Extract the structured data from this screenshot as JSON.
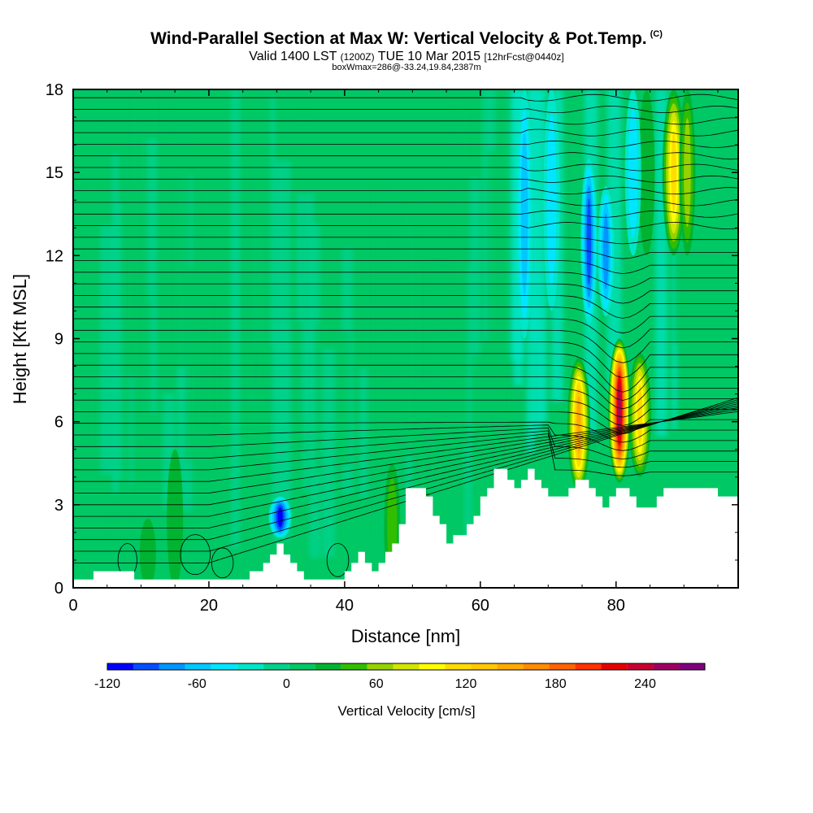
{
  "chart_data": {
    "type": "heatmap",
    "title": "Wind-Parallel Section at Max W: Vertical Velocity & Pot.Temp.",
    "title_mark": "(C)",
    "subtitle_main": "Valid 1400 LST",
    "subtitle_z": "(1200Z)",
    "subtitle_date": "TUE 10 Mar 2015",
    "subtitle_fcst": "[12hrFcst@0440z]",
    "subtitle2": "boxWmax=286@-33.24,19.84,2387m",
    "xlabel": "Distance [nm]",
    "ylabel": "Height [Kft MSL]",
    "xlim": [
      0,
      98
    ],
    "ylim": [
      0,
      18
    ],
    "xticks": [
      "0",
      "20",
      "40",
      "60",
      "80"
    ],
    "xtick_values": [
      0,
      20,
      40,
      60,
      80
    ],
    "yticks": [
      "0",
      "3",
      "6",
      "9",
      "12",
      "15",
      "18"
    ],
    "ytick_values": [
      0,
      3,
      6,
      9,
      12,
      15,
      18
    ],
    "colorbar_label": "Vertical Velocity [cm/s]",
    "colorbar_ticks": [
      "-120",
      "-60",
      "0",
      "60",
      "120",
      "180",
      "240"
    ],
    "colorbar_tick_values": [
      -120,
      -60,
      0,
      60,
      120,
      180,
      240
    ],
    "colorbar_range": [
      -120,
      280
    ],
    "colorbar_colors": [
      "#0000ff",
      "#0050ff",
      "#0096ff",
      "#00c8ff",
      "#00e6ff",
      "#00e6c8",
      "#00d28c",
      "#00c864",
      "#00b432",
      "#32be00",
      "#96d200",
      "#d2e600",
      "#ffff00",
      "#ffdc00",
      "#ffc800",
      "#ffaa00",
      "#ff8c00",
      "#ff6400",
      "#ff3200",
      "#e60000",
      "#c80032",
      "#a00064",
      "#800080"
    ],
    "wind_features": [
      {
        "x": 30.5,
        "y0": 1.8,
        "y1": 3.3,
        "w": -110
      },
      {
        "x": 74.5,
        "y0": 3.5,
        "y1": 8.3,
        "w": 140
      },
      {
        "x": 80.5,
        "y0": 3.8,
        "y1": 9.0,
        "w": 240
      },
      {
        "x": 83.5,
        "y0": 4.0,
        "y1": 8.5,
        "w": 110
      },
      {
        "x": 76,
        "y0": 9.5,
        "y1": 15.5,
        "w": -90
      },
      {
        "x": 78.5,
        "y0": 9.8,
        "y1": 14.5,
        "w": -70
      },
      {
        "x": 88.5,
        "y0": 12.0,
        "y1": 18.0,
        "w": 110
      },
      {
        "x": 90.5,
        "y0": 12.0,
        "y1": 18.0,
        "w": 60
      },
      {
        "x": 84.5,
        "y0": 12.0,
        "y1": 18.0,
        "w": 20
      },
      {
        "x": 66.5,
        "y0": 9.0,
        "y1": 18.0,
        "w": -45
      },
      {
        "x": 70.5,
        "y0": 10.0,
        "y1": 18.0,
        "w": -40
      },
      {
        "x": 82.5,
        "y0": 12.0,
        "y1": 18.0,
        "w": -40
      },
      {
        "x": 47,
        "y0": 0.0,
        "y1": 4.5,
        "w": 35
      },
      {
        "x": 52,
        "y0": 0.0,
        "y1": 3.5,
        "w": 30
      },
      {
        "x": 11,
        "y0": 0.0,
        "y1": 2.5,
        "w": 25
      },
      {
        "x": 15,
        "y0": 0.0,
        "y1": 5.0,
        "w": 20
      }
    ],
    "terrain_nm_kft": [
      [
        0,
        0.3
      ],
      [
        3,
        0.3
      ],
      [
        3,
        0.6
      ],
      [
        9,
        0.6
      ],
      [
        9,
        0.3
      ],
      [
        26,
        0.3
      ],
      [
        26,
        0.6
      ],
      [
        28,
        0.6
      ],
      [
        28,
        0.9
      ],
      [
        29,
        0.9
      ],
      [
        29,
        1.2
      ],
      [
        30,
        1.2
      ],
      [
        30,
        1.6
      ],
      [
        31,
        1.6
      ],
      [
        31,
        1.2
      ],
      [
        32,
        1.2
      ],
      [
        32,
        0.9
      ],
      [
        33,
        0.9
      ],
      [
        33,
        0.6
      ],
      [
        34,
        0.6
      ],
      [
        34,
        0.3
      ],
      [
        40,
        0.3
      ],
      [
        40,
        0.6
      ],
      [
        41,
        0.6
      ],
      [
        41,
        0.9
      ],
      [
        42,
        0.9
      ],
      [
        42,
        1.3
      ],
      [
        43,
        1.3
      ],
      [
        43,
        0.9
      ],
      [
        44,
        0.9
      ],
      [
        44,
        0.6
      ],
      [
        45,
        0.6
      ],
      [
        45,
        0.9
      ],
      [
        46,
        0.9
      ],
      [
        46,
        1.3
      ],
      [
        47,
        1.3
      ],
      [
        47,
        1.6
      ],
      [
        48,
        1.6
      ],
      [
        48,
        2.3
      ],
      [
        49,
        2.3
      ],
      [
        49,
        3.6
      ],
      [
        52,
        3.6
      ],
      [
        52,
        3.3
      ],
      [
        53,
        3.3
      ],
      [
        53,
        2.6
      ],
      [
        54,
        2.6
      ],
      [
        54,
        2.3
      ],
      [
        55,
        2.3
      ],
      [
        55,
        1.6
      ],
      [
        56,
        1.6
      ],
      [
        56,
        1.9
      ],
      [
        58,
        1.9
      ],
      [
        58,
        2.3
      ],
      [
        59,
        2.3
      ],
      [
        59,
        2.6
      ],
      [
        60,
        2.6
      ],
      [
        60,
        3.3
      ],
      [
        61,
        3.3
      ],
      [
        61,
        3.6
      ],
      [
        62,
        3.6
      ],
      [
        62,
        4.3
      ],
      [
        64,
        4.3
      ],
      [
        64,
        3.9
      ],
      [
        65,
        3.9
      ],
      [
        65,
        3.6
      ],
      [
        66,
        3.6
      ],
      [
        66,
        3.9
      ],
      [
        67,
        3.9
      ],
      [
        67,
        4.3
      ],
      [
        68,
        4.3
      ],
      [
        68,
        3.9
      ],
      [
        69,
        3.9
      ],
      [
        69,
        3.6
      ],
      [
        70,
        3.6
      ],
      [
        70,
        3.3
      ],
      [
        73,
        3.3
      ],
      [
        73,
        3.6
      ],
      [
        74,
        3.6
      ],
      [
        74,
        3.9
      ],
      [
        76,
        3.9
      ],
      [
        76,
        3.6
      ],
      [
        77,
        3.6
      ],
      [
        77,
        3.3
      ],
      [
        78,
        3.3
      ],
      [
        78,
        2.9
      ],
      [
        79,
        2.9
      ],
      [
        79,
        3.3
      ],
      [
        80,
        3.3
      ],
      [
        80,
        3.6
      ],
      [
        82,
        3.6
      ],
      [
        82,
        3.3
      ],
      [
        83,
        3.3
      ],
      [
        83,
        2.9
      ],
      [
        86,
        2.9
      ],
      [
        86,
        3.3
      ],
      [
        87,
        3.3
      ],
      [
        87,
        3.6
      ],
      [
        95,
        3.6
      ],
      [
        95,
        3.3
      ],
      [
        98,
        3.3
      ]
    ]
  }
}
